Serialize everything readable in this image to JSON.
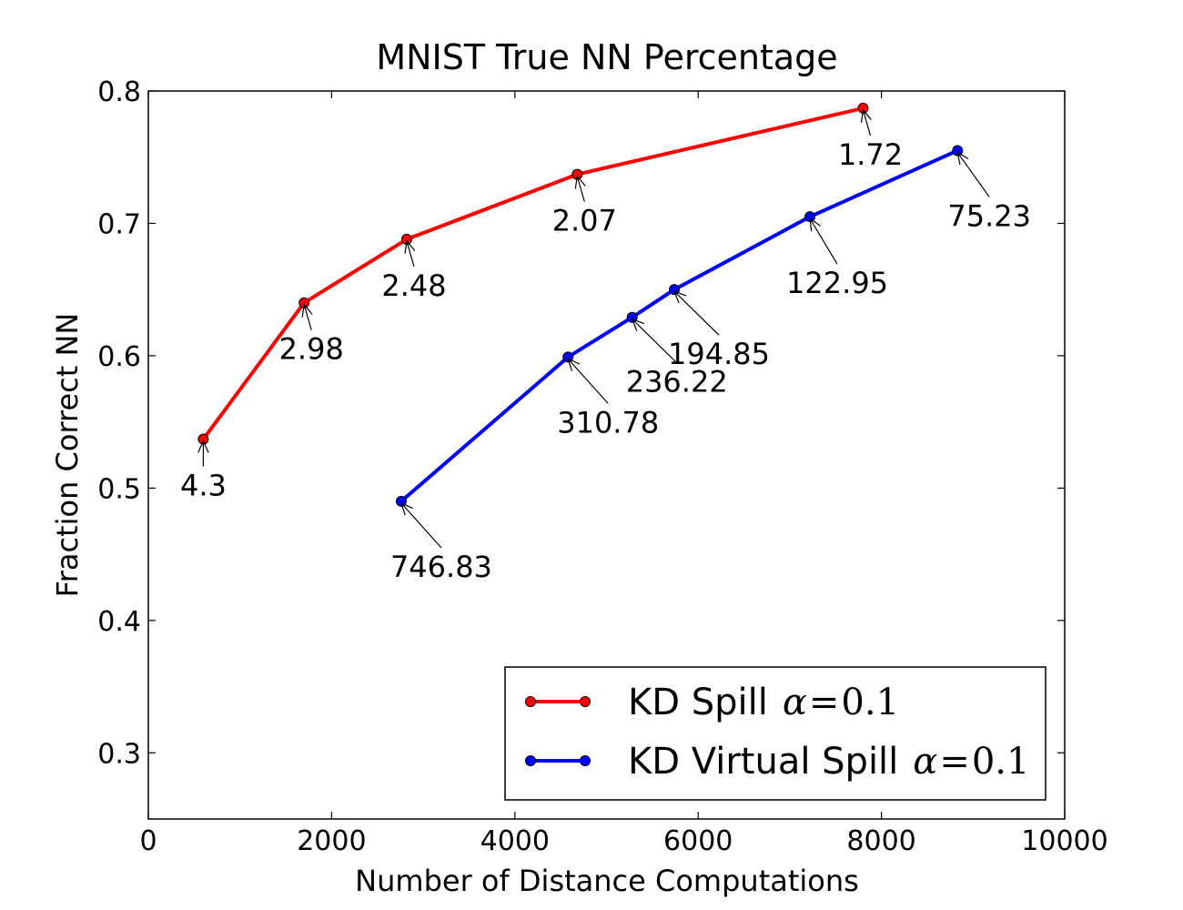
{
  "chart_data": {
    "type": "line",
    "title": "MNIST True NN Percentage",
    "xlabel": "Number of Distance Computations",
    "ylabel": "Fraction Correct NN",
    "xlim": [
      0,
      10000
    ],
    "ylim": [
      0.25,
      0.8
    ],
    "x_ticks": [
      0,
      2000,
      4000,
      6000,
      8000,
      10000
    ],
    "y_ticks": [
      0.3,
      0.4,
      0.5,
      0.6,
      0.7,
      0.8
    ],
    "x_tick_labels": [
      "0",
      "2000",
      "4000",
      "6000",
      "8000",
      "10000"
    ],
    "y_tick_labels": [
      "0.3",
      "0.4",
      "0.5",
      "0.6",
      "0.7",
      "0.8"
    ],
    "grid": false,
    "legend_position": "bottom-right",
    "series": [
      {
        "name": "KD Spill",
        "math": {
          "symbol": "α",
          "op": "=",
          "value": "0.1"
        },
        "color": "#ff0000",
        "points": [
          {
            "x": 600,
            "y": 0.537,
            "label": "4.3"
          },
          {
            "x": 1700,
            "y": 0.64,
            "label": "2.98"
          },
          {
            "x": 2820,
            "y": 0.688,
            "label": "2.48"
          },
          {
            "x": 4680,
            "y": 0.737,
            "label": "2.07"
          },
          {
            "x": 7800,
            "y": 0.787,
            "label": "1.72"
          }
        ]
      },
      {
        "name": "KD Virtual Spill",
        "math": {
          "symbol": "α",
          "op": "=",
          "value": "0.1"
        },
        "color": "#0000ff",
        "points": [
          {
            "x": 2760,
            "y": 0.49,
            "label": "746.83"
          },
          {
            "x": 4580,
            "y": 0.599,
            "label": "310.78"
          },
          {
            "x": 5280,
            "y": 0.629,
            "label": "236.22"
          },
          {
            "x": 5740,
            "y": 0.65,
            "label": "194.85"
          },
          {
            "x": 7220,
            "y": 0.705,
            "label": "122.95"
          },
          {
            "x": 8830,
            "y": 0.755,
            "label": "75.23"
          }
        ]
      }
    ]
  }
}
